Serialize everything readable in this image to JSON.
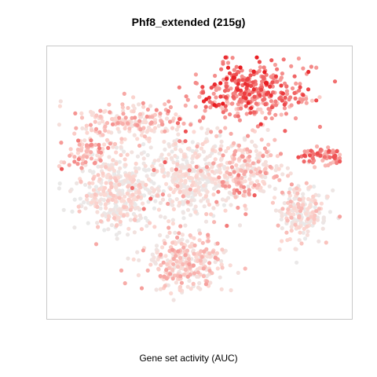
{
  "chart_data": {
    "type": "scatter",
    "title": "Phf8_extended (215g)",
    "xlabel": "Gene set activity (AUC)",
    "ylabel": "",
    "grid": false,
    "legend": "none",
    "color_low": "#e9e9e9",
    "color_mid": "#fcd9d3",
    "color_high": "#e8191e",
    "xlim": [
      0,
      100
    ],
    "ylim": [
      0,
      100
    ],
    "clusters": [
      {
        "name": "top-right-hotspot",
        "cx": 68,
        "cy": 86,
        "rx": 16,
        "ry": 9,
        "n": 260,
        "min": 0.45,
        "max": 1.0
      },
      {
        "name": "top-right-rim",
        "cx": 66,
        "cy": 79,
        "rx": 18,
        "ry": 6,
        "n": 80,
        "min": 0.25,
        "max": 0.7
      },
      {
        "name": "far-right-lobe",
        "cx": 91,
        "cy": 60,
        "rx": 6,
        "ry": 3,
        "n": 70,
        "min": 0.3,
        "max": 0.8
      },
      {
        "name": "upper-left-arm",
        "cx": 27,
        "cy": 73,
        "rx": 17,
        "ry": 6,
        "n": 170,
        "min": 0.1,
        "max": 0.5
      },
      {
        "name": "left-edge",
        "cx": 13,
        "cy": 61,
        "rx": 7,
        "ry": 5,
        "n": 70,
        "min": 0.15,
        "max": 0.6
      },
      {
        "name": "left-body",
        "cx": 22,
        "cy": 46,
        "rx": 12,
        "ry": 13,
        "n": 360,
        "min": 0.0,
        "max": 0.3
      },
      {
        "name": "center-body",
        "cx": 46,
        "cy": 52,
        "rx": 14,
        "ry": 14,
        "n": 380,
        "min": 0.0,
        "max": 0.25
      },
      {
        "name": "center-right",
        "cx": 66,
        "cy": 54,
        "rx": 11,
        "ry": 11,
        "n": 210,
        "min": 0.05,
        "max": 0.5
      },
      {
        "name": "right-lower",
        "cx": 84,
        "cy": 38,
        "rx": 8,
        "ry": 10,
        "n": 190,
        "min": 0.0,
        "max": 0.35
      },
      {
        "name": "bottom-stem",
        "cx": 45,
        "cy": 20,
        "rx": 13,
        "ry": 11,
        "n": 300,
        "min": 0.05,
        "max": 0.45
      },
      {
        "name": "scattered-highs",
        "cx": 50,
        "cy": 55,
        "rx": 30,
        "ry": 26,
        "n": 60,
        "min": 0.4,
        "max": 0.75
      }
    ]
  }
}
